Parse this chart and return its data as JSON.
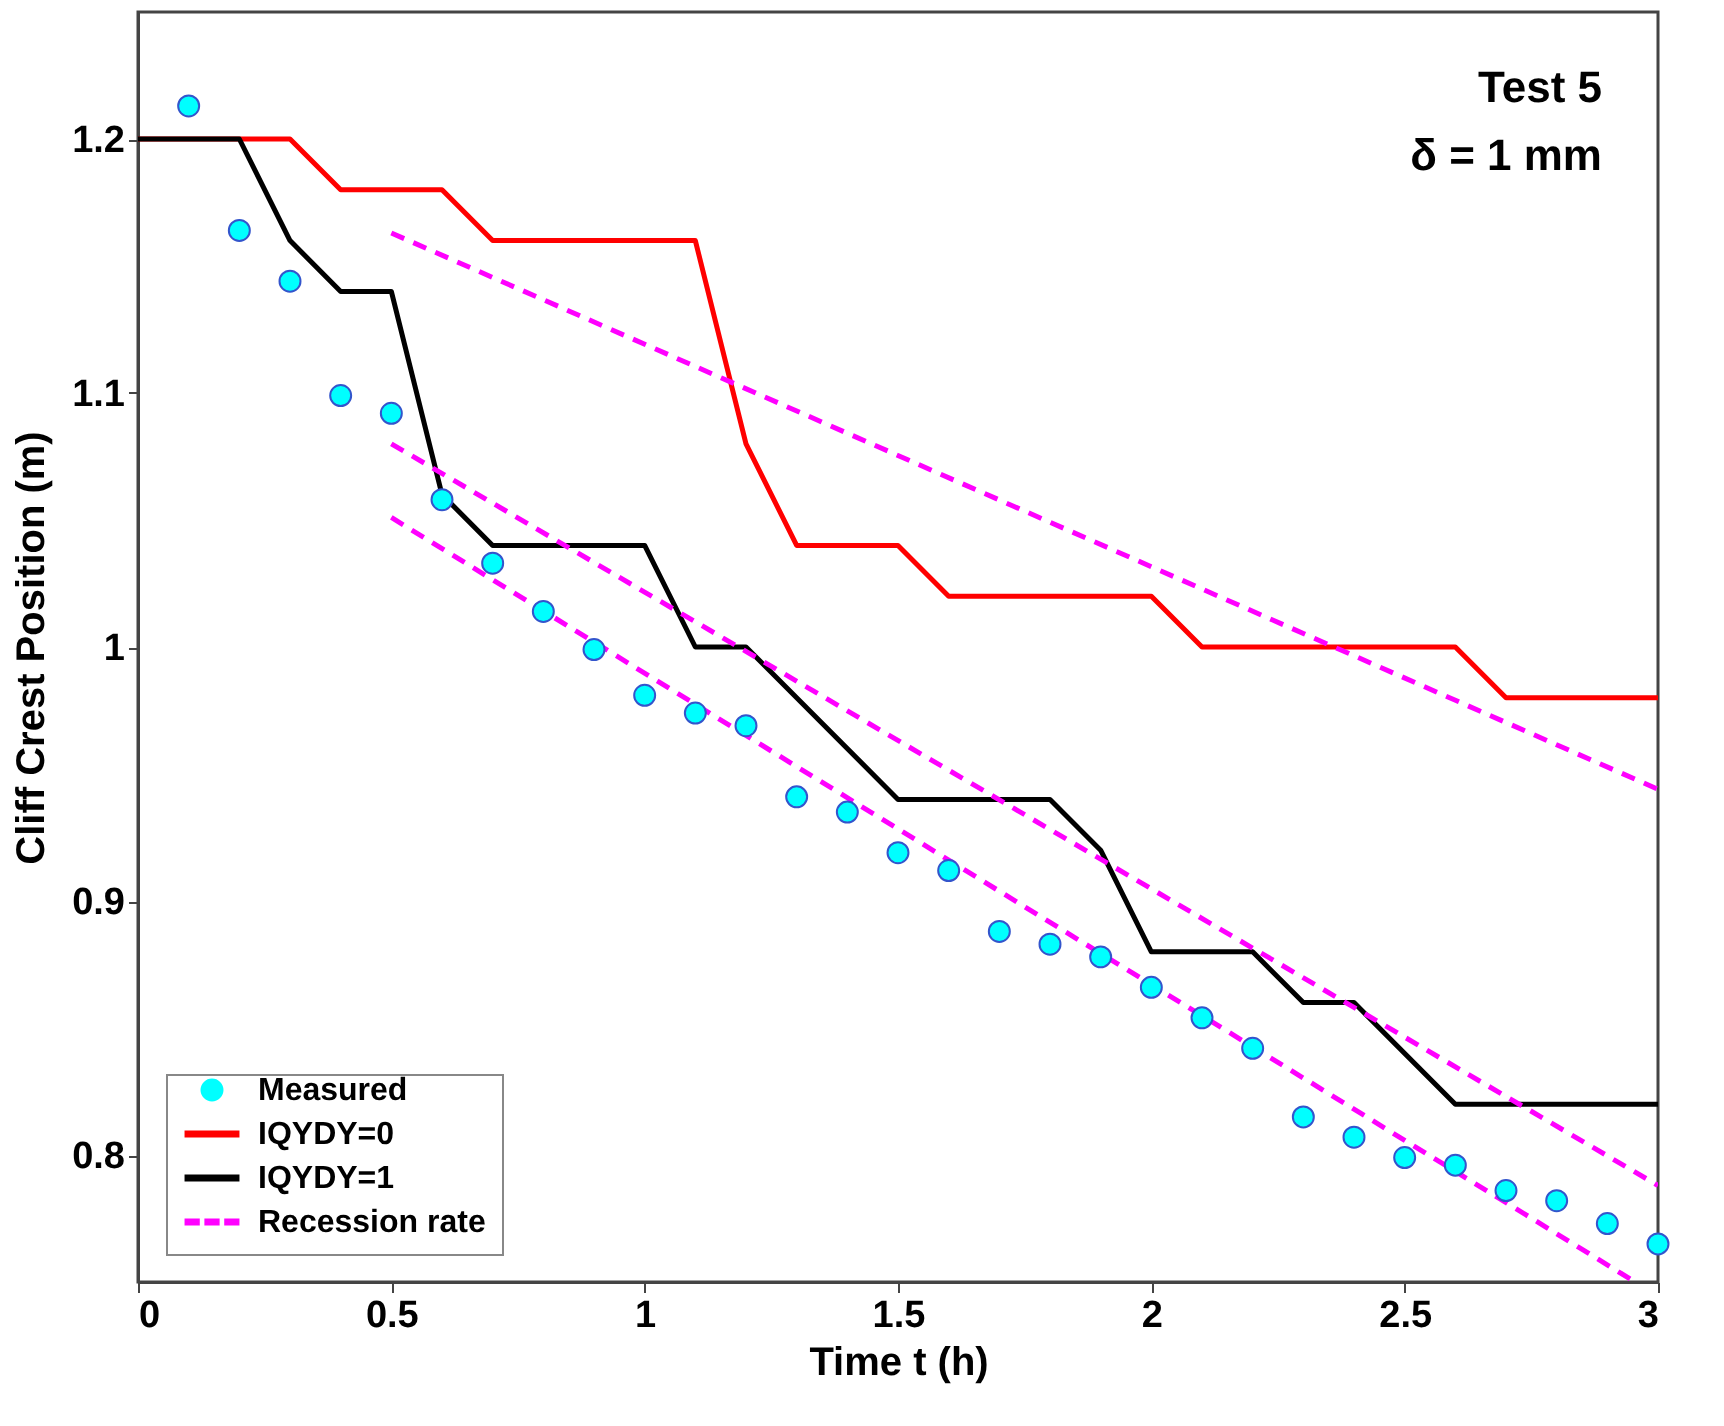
{
  "chart_data": {
    "type": "line",
    "xlabel": "Time t (h)",
    "ylabel": "Cliff Crest Position (m)",
    "annotations": [
      "Test 5",
      "δ = 1 mm"
    ],
    "xlim": [
      0,
      3
    ],
    "xticks": [
      0,
      0.5,
      1,
      1.5,
      2,
      2.5,
      3
    ],
    "ylim": [
      0.75,
      1.25
    ],
    "yticks": [
      0.8,
      0.9,
      1,
      1.1,
      1.2
    ],
    "grid": false,
    "legend": "bottom left",
    "series": [
      {
        "name": "Measured",
        "type": "scatter",
        "marker": "circle",
        "color": "#00ffff",
        "x": [
          0.1,
          0.2,
          0.3,
          0.4,
          0.5,
          0.6,
          0.7,
          0.8,
          0.9,
          1.0,
          1.1,
          1.2,
          1.3,
          1.4,
          1.5,
          1.6,
          1.7,
          1.8,
          1.9,
          2.0,
          2.1,
          2.2,
          2.3,
          2.4,
          2.5,
          2.6,
          2.7,
          2.8,
          2.9,
          3.0
        ],
        "values": [
          1.213,
          1.164,
          1.144,
          1.099,
          1.092,
          1.058,
          1.033,
          1.014,
          0.999,
          0.981,
          0.974,
          0.969,
          0.941,
          0.935,
          0.919,
          0.912,
          0.888,
          0.883,
          0.878,
          0.866,
          0.854,
          0.842,
          0.815,
          0.807,
          0.799,
          0.796,
          0.786,
          0.782,
          0.773,
          0.765
        ]
      },
      {
        "name": "IQYDY=0",
        "type": "line",
        "color": "#ff0000",
        "x": [
          0,
          0.3,
          0.4,
          0.6,
          0.7,
          1.1,
          1.2,
          1.3,
          1.5,
          1.6,
          2.0,
          2.1,
          2.6,
          2.7,
          3.0
        ],
        "values": [
          1.2,
          1.2,
          1.18,
          1.18,
          1.16,
          1.16,
          1.08,
          1.04,
          1.04,
          1.02,
          1.02,
          1.0,
          1.0,
          0.98,
          0.98
        ]
      },
      {
        "name": "IQYDY=1",
        "type": "line",
        "color": "#000000",
        "x": [
          0,
          0.2,
          0.3,
          0.4,
          0.5,
          0.6,
          0.7,
          1.0,
          1.1,
          1.2,
          1.5,
          1.8,
          1.9,
          2.0,
          2.2,
          2.3,
          2.4,
          2.6,
          3.0
        ],
        "values": [
          1.2,
          1.2,
          1.16,
          1.14,
          1.14,
          1.06,
          1.04,
          1.04,
          1.0,
          1.0,
          0.94,
          0.94,
          0.92,
          0.88,
          0.88,
          0.86,
          0.86,
          0.82,
          0.82
        ]
      },
      {
        "name": "Recession rate",
        "type": "line",
        "line_style": "dashed",
        "color": "#ff00ff",
        "x": [
          0.5,
          3
        ],
        "values": [
          1.163,
          0.944
        ]
      },
      {
        "type": "line",
        "line_style": "dashed",
        "color": "#ff00ff",
        "x": [
          0.5,
          3
        ],
        "values": [
          1.08,
          0.788
        ]
      },
      {
        "type": "line",
        "line_style": "dashed",
        "color": "#ff00ff",
        "x": [
          0.5,
          2.955
        ],
        "values": [
          1.051,
          0.75
        ]
      }
    ]
  }
}
